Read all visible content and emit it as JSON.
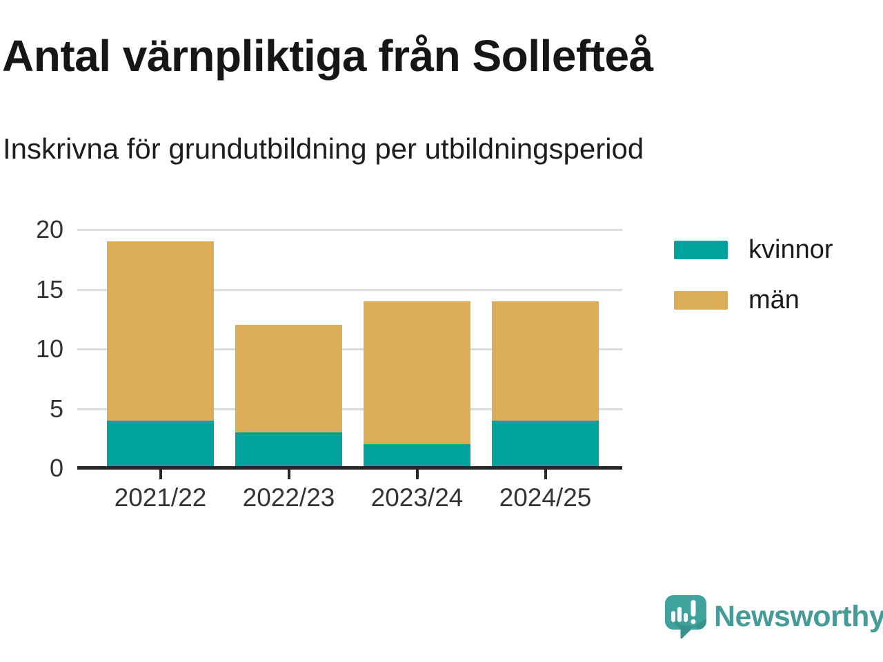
{
  "header": {
    "title": "Antal värnpliktiga från Sollefteå",
    "subtitle": "Inskrivna för grundutbildning per utbildningsperiod"
  },
  "chart_data": {
    "type": "bar",
    "stacked": true,
    "title": "Antal värnpliktiga från Sollefteå",
    "subtitle": "Inskrivna för grundutbildning per utbildningsperiod",
    "categories": [
      "2021/22",
      "2022/23",
      "2023/24",
      "2024/25"
    ],
    "series": [
      {
        "name": "kvinnor",
        "color": "#00a39b",
        "values": [
          4,
          3,
          2,
          4
        ]
      },
      {
        "name": "män",
        "color": "#dbad56",
        "values": [
          15,
          9,
          12,
          10
        ]
      }
    ],
    "stack_totals": [
      19,
      12,
      14,
      14
    ],
    "xlabel": "",
    "ylabel": "",
    "ylim": [
      0,
      20
    ],
    "yticks": [
      0,
      5,
      10,
      15,
      20
    ],
    "grid": "horizontal",
    "legend_position": "top-right"
  },
  "legend": {
    "items": [
      {
        "label": "kvinnor",
        "color": "#00a39b"
      },
      {
        "label": "män",
        "color": "#dbad56"
      }
    ]
  },
  "branding": {
    "wordmark": "Newsworthy",
    "logo_icon": "newsworthy-speech-bubble-bar-chart-icon",
    "brand_color": "#449b97",
    "icon_color": "#3fa29d"
  },
  "colors": {
    "background": "#ffffff",
    "axis": "#262626",
    "gridline": "#dcdcdc",
    "tick_text": "#333333",
    "title_text": "#161616"
  }
}
